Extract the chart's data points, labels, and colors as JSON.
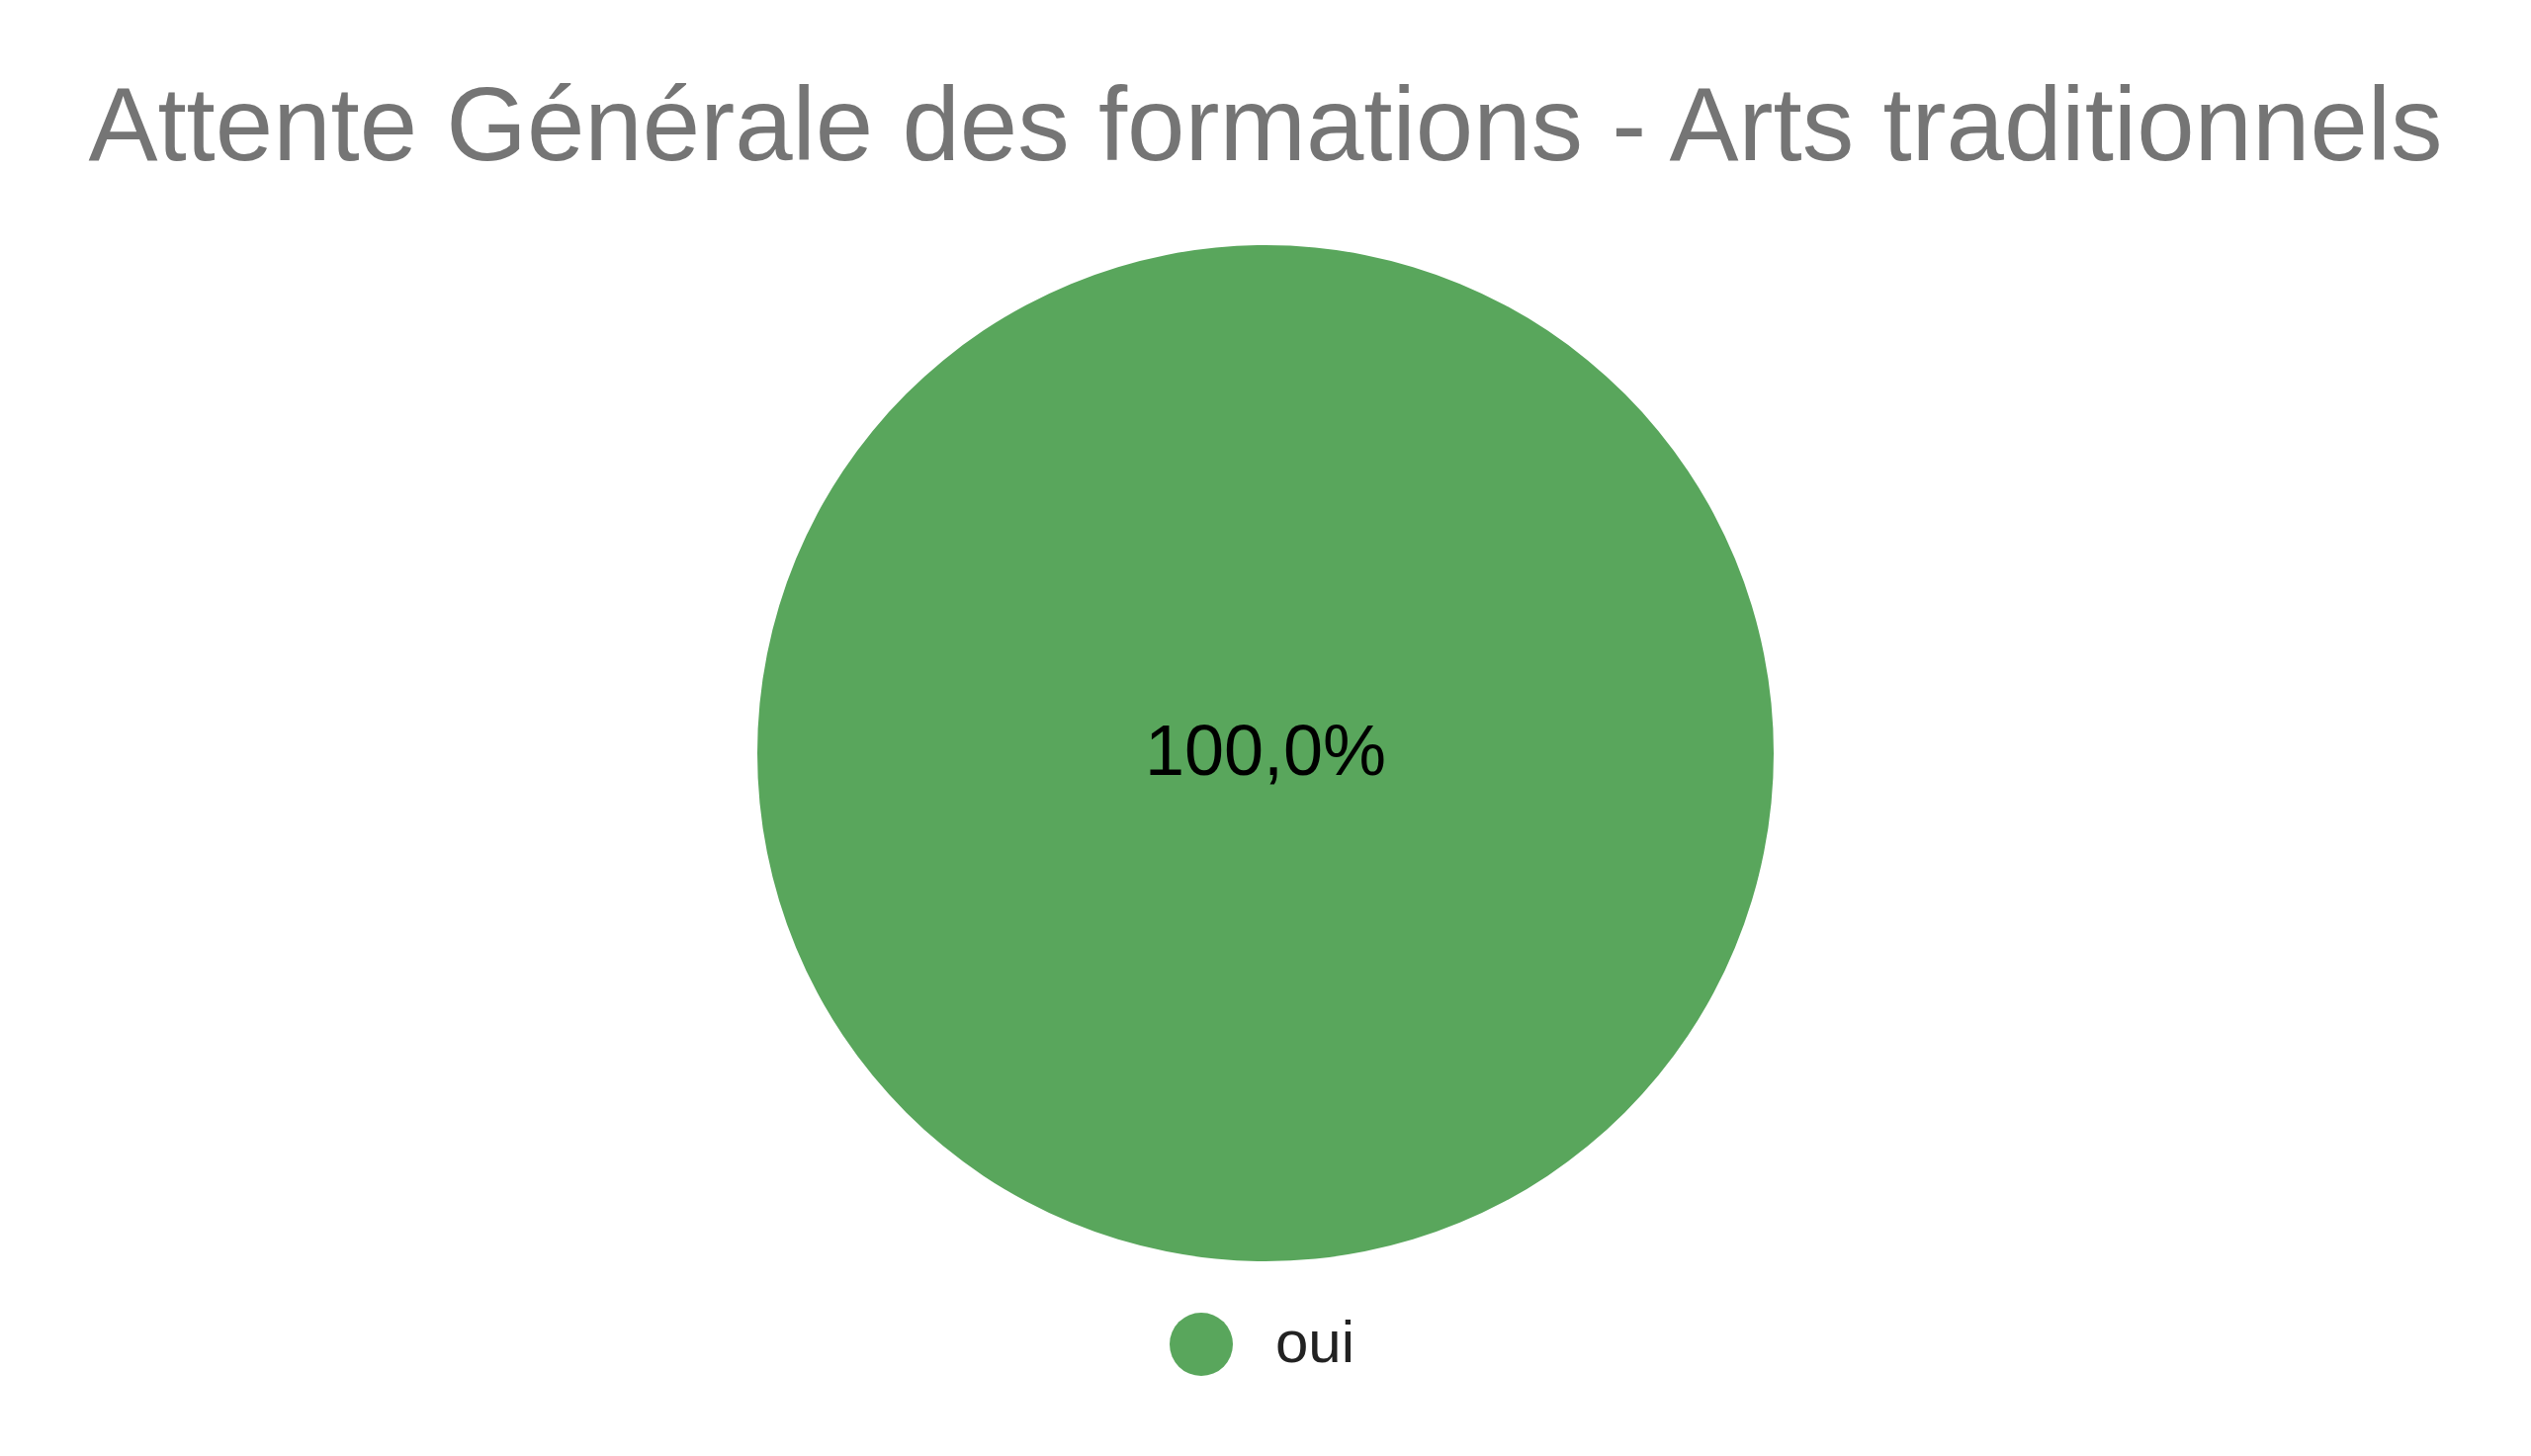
{
  "chart_data": {
    "type": "pie",
    "title": "Attente Générale des formations - Arts traditionnels",
    "categories": [
      "oui"
    ],
    "values": [
      100
    ],
    "colors": [
      "#59a65c"
    ],
    "value_labels": [
      "100,0%"
    ],
    "legend": "bottom"
  }
}
